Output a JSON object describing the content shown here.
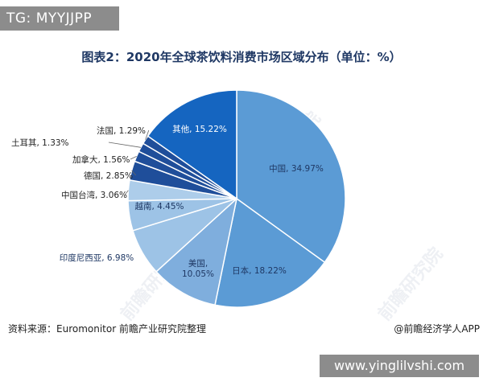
{
  "watermark_tag": "TG: MYYJJPP",
  "footer": {
    "source": "资料来源：Euromonitor 前瞻产业研究院整理",
    "credit": "@前瞻经济学人APP"
  },
  "url_watermark": "www.yinglilvshi.com",
  "chart_data": {
    "type": "pie",
    "title": "图表2：2020年全球茶饮料消费市场区域分布（单位：%）",
    "slices": [
      {
        "label": "中国",
        "value": 34.97,
        "text": "中国, 34.97%",
        "color": "#5b9bd5"
      },
      {
        "label": "日本",
        "value": 18.22,
        "text": "日本, 18.22%",
        "color": "#5b9bd5"
      },
      {
        "label": "美国",
        "value": 10.05,
        "text": "美国, 10.05%",
        "color": "#7faedd"
      },
      {
        "label": "印度尼西亚",
        "value": 6.98,
        "text": "印度尼西亚, 6.98%",
        "color": "#9dc3e6"
      },
      {
        "label": "越南",
        "value": 4.45,
        "text": "越南, 4.45%",
        "color": "#9dc3e6"
      },
      {
        "label": "中国台湾",
        "value": 3.06,
        "text": "中国台湾, 3.06%",
        "color": "#adcdea"
      },
      {
        "label": "德国",
        "value": 2.85,
        "text": "德国, 2.85%",
        "color": "#1f4e9a"
      },
      {
        "label": "加拿大",
        "value": 1.56,
        "text": "加拿大, 1.56%",
        "color": "#1f4e9a"
      },
      {
        "label": "土耳其",
        "value": 1.33,
        "text": "土耳其, 1.33%",
        "color": "#1f4e9a"
      },
      {
        "label": "法国",
        "value": 1.29,
        "text": "法国, 1.29%",
        "color": "#1f4e9a"
      },
      {
        "label": "其他",
        "value": 15.22,
        "text": "其他, 15.22%",
        "color": "#1565c0"
      }
    ]
  }
}
